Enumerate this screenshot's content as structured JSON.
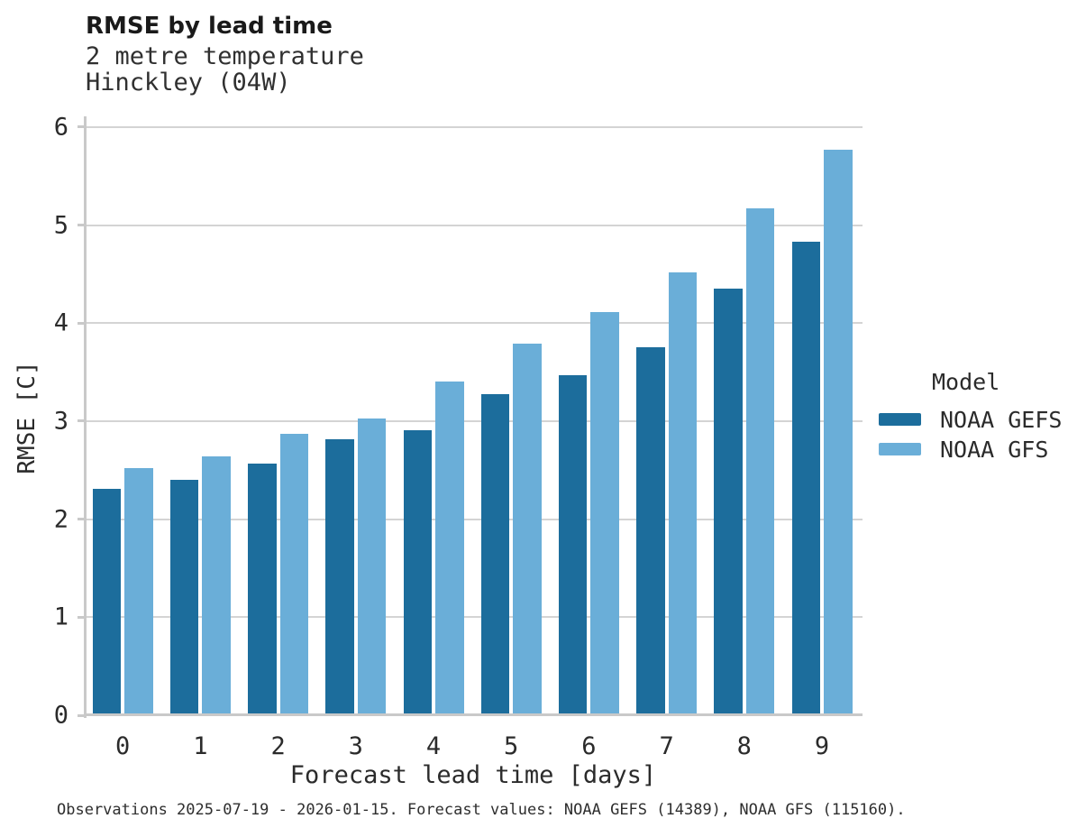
{
  "chart_data": {
    "type": "bar",
    "title": "RMSE by lead time",
    "subtitle_lines": [
      "2 metre temperature",
      "Hinckley (04W)"
    ],
    "xlabel": "Forecast lead time [days]",
    "ylabel": "RMSE [C]",
    "legend_title": "Model",
    "legend_position": "right",
    "grid": true,
    "categories": [
      "0",
      "1",
      "2",
      "3",
      "4",
      "5",
      "6",
      "7",
      "8",
      "9"
    ],
    "series": [
      {
        "name": "NOAA GEFS",
        "color": "#1c6d9c",
        "values": [
          2.33,
          2.42,
          2.59,
          2.83,
          2.93,
          3.29,
          3.49,
          3.77,
          4.37,
          4.85
        ]
      },
      {
        "name": "NOAA GFS",
        "color": "#6aaed8",
        "values": [
          2.54,
          2.66,
          2.89,
          3.05,
          3.42,
          3.81,
          4.13,
          4.54,
          5.19,
          5.79
        ]
      }
    ],
    "ylim": [
      0,
      6.11
    ],
    "yticks": [
      "0",
      "1",
      "2",
      "3",
      "4",
      "5",
      "6"
    ],
    "caption": "Observations 2025-07-19 - 2026-01-15. Forecast values: NOAA GEFS (14389), NOAA GFS (115160)."
  },
  "colors": {
    "gridline": "#d4d4d4",
    "spine": "#c9c9c9",
    "background": "#ffffff"
  }
}
